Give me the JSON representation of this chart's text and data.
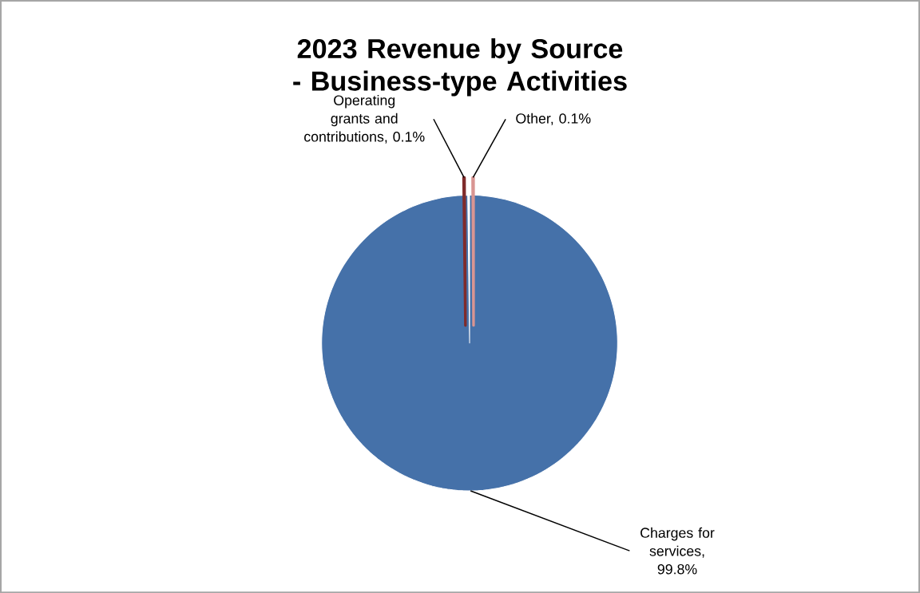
{
  "chart_data": {
    "type": "pie",
    "title": "2023 Revenue by Source - Business-type Activities",
    "categories": [
      "Charges for services, 99.8%",
      "Operating grants and contributions, 0.1%",
      "Other, 0.1%"
    ],
    "values": [
      99.8,
      0.1,
      0.1
    ],
    "colors": [
      "#4571a9",
      "#7f2b2b",
      "#d99592"
    ]
  }
}
